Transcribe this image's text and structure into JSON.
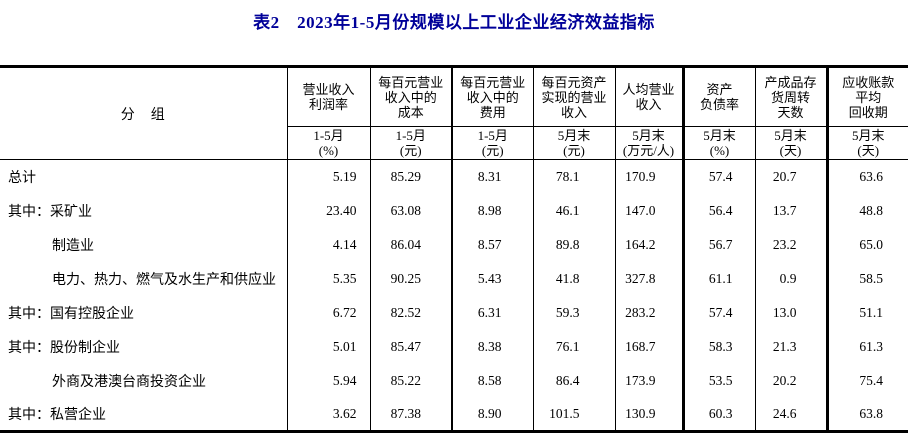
{
  "page": {
    "title": "表2　2023年1-5月份规模以上工业企业经济效益指标",
    "title_color": "#000099",
    "border_color": "#000000",
    "background_color": "#ffffff"
  },
  "table": {
    "group_header": "分　组",
    "columns": [
      {
        "name": "营业收入\n利润率",
        "period": "1-5月\n(%)"
      },
      {
        "name": "每百元营业\n收入中的\n成本",
        "period": "1-5月\n(元)"
      },
      {
        "name": "每百元营业\n收入中的\n费用",
        "period": "1-5月\n(元)"
      },
      {
        "name": "每百元资产\n实现的营业\n收入",
        "period": "5月末\n(元)"
      },
      {
        "name": "人均营业\n收入",
        "period": "5月末\n(万元/人)"
      },
      {
        "name": "资产\n负债率",
        "period": "5月末\n(%)"
      },
      {
        "name": "产成品存\n货周转\n天数",
        "period": "5月末\n(天)"
      },
      {
        "name": "应收账款\n平均\n回收期",
        "period": "5月末\n(天)"
      }
    ],
    "rows": [
      {
        "prefix": "",
        "label": "总计",
        "indent": false,
        "values": [
          "5.19",
          "85.29",
          "8.31",
          "78.1",
          "170.9",
          "57.4",
          "20.7",
          "63.6"
        ]
      },
      {
        "prefix": "其中：",
        "label": "采矿业",
        "indent": false,
        "values": [
          "23.40",
          "63.08",
          "8.98",
          "46.1",
          "147.0",
          "56.4",
          "13.7",
          "48.8"
        ]
      },
      {
        "prefix": "",
        "label": "制造业",
        "indent": true,
        "values": [
          "4.14",
          "86.04",
          "8.57",
          "89.8",
          "164.2",
          "56.7",
          "23.2",
          "65.0"
        ]
      },
      {
        "prefix": "",
        "label": "电力、热力、燃气及水生产和供应业",
        "indent": true,
        "values": [
          "5.35",
          "90.25",
          "5.43",
          "41.8",
          "327.8",
          "61.1",
          "0.9",
          "58.5"
        ]
      },
      {
        "prefix": "其中：",
        "label": "国有控股企业",
        "indent": false,
        "values": [
          "6.72",
          "82.52",
          "6.31",
          "59.3",
          "283.2",
          "57.4",
          "13.0",
          "51.1"
        ]
      },
      {
        "prefix": "其中：",
        "label": "股份制企业",
        "indent": false,
        "values": [
          "5.01",
          "85.47",
          "8.38",
          "76.1",
          "168.7",
          "58.3",
          "21.3",
          "61.3"
        ]
      },
      {
        "prefix": "",
        "label": "外商及港澳台商投资企业",
        "indent": true,
        "values": [
          "5.94",
          "85.22",
          "8.58",
          "86.4",
          "173.9",
          "53.5",
          "20.2",
          "75.4"
        ]
      },
      {
        "prefix": "其中：",
        "label": "私营企业",
        "indent": false,
        "values": [
          "3.62",
          "87.38",
          "8.90",
          "101.5",
          "130.9",
          "60.3",
          "24.6",
          "63.8"
        ]
      }
    ]
  }
}
